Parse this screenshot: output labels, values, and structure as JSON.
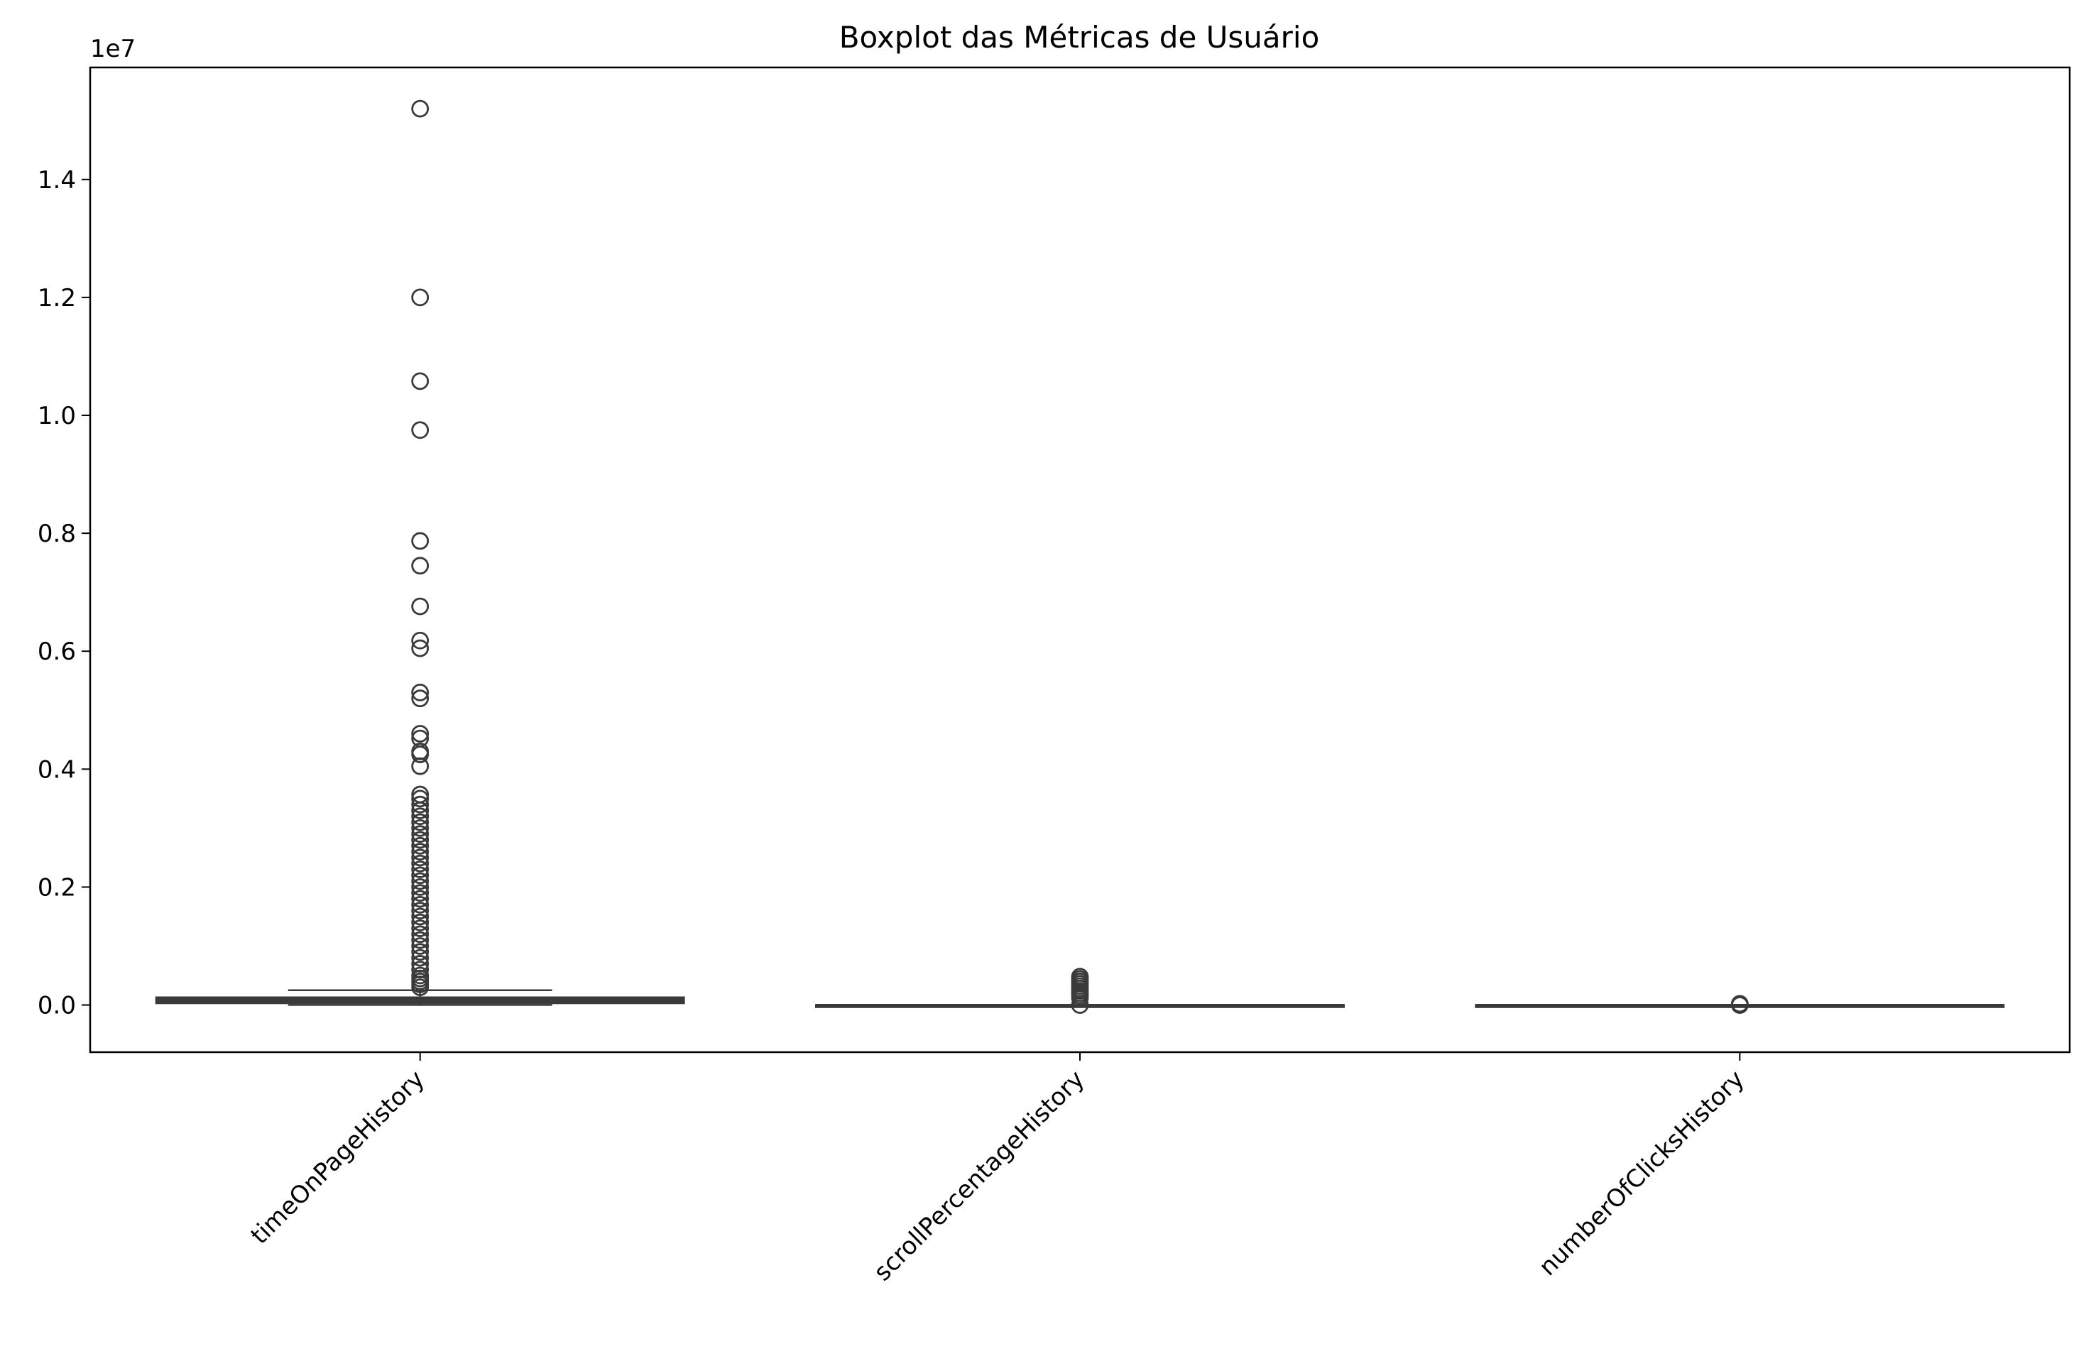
{
  "chart_data": {
    "type": "boxplot",
    "title": "Boxplot das Métricas de Usuário",
    "xlabel": "",
    "ylabel": "",
    "y_offset_label": "1e7",
    "y_scale": 10000000,
    "ylim": [
      -0.08,
      1.59
    ],
    "yticks": [
      0.0,
      0.2,
      0.4,
      0.6,
      0.8,
      1.0,
      1.2,
      1.4
    ],
    "ytick_labels": [
      "0.0",
      "0.2",
      "0.4",
      "0.6",
      "0.8",
      "1.0",
      "1.2",
      "1.4"
    ],
    "grid": false,
    "legend": "none",
    "colors": {
      "box_edge": "#3a3a3a",
      "box_fill": "#3a3a3a",
      "axis": "#000000"
    },
    "categories": [
      "timeOnPageHistory",
      "scrollPercentageHistory",
      "numberOfClicksHistory"
    ],
    "boxes": [
      {
        "name": "timeOnPageHistory",
        "whisker_low": 0.0,
        "q1": 0.003,
        "median": 0.009,
        "q3": 0.013,
        "whisker_high": 0.025,
        "outliers": [
          1.52,
          1.2,
          1.058,
          0.975,
          0.787,
          0.745,
          0.676,
          0.618,
          0.605,
          0.53,
          0.52,
          0.46,
          0.452,
          0.43,
          0.425,
          0.405,
          0.357,
          0.35,
          0.34,
          0.33,
          0.32,
          0.31,
          0.3,
          0.29,
          0.28,
          0.27,
          0.26,
          0.25,
          0.24,
          0.23,
          0.22,
          0.21,
          0.2,
          0.19,
          0.18,
          0.17,
          0.16,
          0.15,
          0.14,
          0.13,
          0.12,
          0.11,
          0.1,
          0.09,
          0.08,
          0.07,
          0.06,
          0.05,
          0.045,
          0.04,
          0.035,
          0.03
        ]
      },
      {
        "name": "scrollPercentageHistory",
        "whisker_low": 0.0,
        "q1": 0.0,
        "median": 0.0,
        "q3": 0.0,
        "whisker_high": 0.0,
        "outliers": [
          0.048,
          0.044,
          0.04,
          0.036,
          0.032,
          0.028,
          0.024,
          0.02,
          0.016,
          0.012,
          0.0
        ]
      },
      {
        "name": "numberOfClicksHistory",
        "whisker_low": 0.0,
        "q1": 0.0,
        "median": 0.0,
        "q3": 0.0,
        "whisker_high": 0.0,
        "outliers": [
          0.0,
          0.001,
          0.002
        ]
      }
    ]
  }
}
